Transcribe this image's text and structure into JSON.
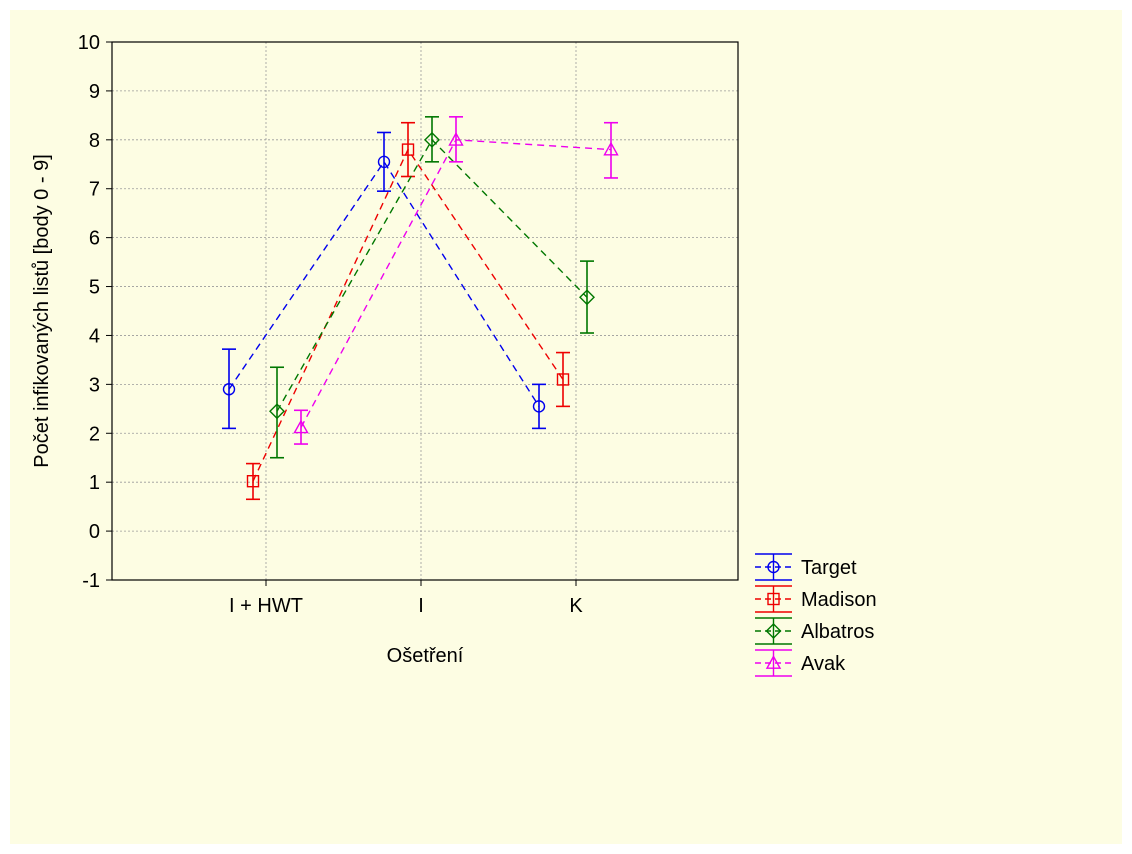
{
  "chart_data": {
    "type": "line",
    "title": "",
    "xlabel": "Ošetření",
    "ylabel": "Počet infikovaných listů [body 0 - 9]",
    "categories": [
      "I + HWT",
      "I",
      "K"
    ],
    "ylim": [
      -1,
      10
    ],
    "yticks": [
      "-1",
      "0",
      "1",
      "2",
      "3",
      "4",
      "5",
      "6",
      "7",
      "8",
      "9",
      "10"
    ],
    "grid": true,
    "legend_position": "bottom-right",
    "error_bars": true,
    "line_style": "dashed",
    "series": [
      {
        "name": "Target",
        "color": "#0000ee",
        "marker": "circle",
        "values": [
          2.9,
          7.55,
          2.55
        ],
        "lower": [
          2.1,
          6.95,
          2.1
        ],
        "upper": [
          3.72,
          8.15,
          3.0
        ],
        "plotted": [
          true,
          true,
          true
        ]
      },
      {
        "name": "Madison",
        "color": "#ee0000",
        "marker": "square",
        "values": [
          1.02,
          7.8,
          3.1
        ],
        "lower": [
          0.65,
          7.25,
          2.55
        ],
        "upper": [
          1.38,
          8.35,
          3.65
        ],
        "plotted": [
          true,
          true,
          true
        ]
      },
      {
        "name": "Albatros",
        "color": "#007700",
        "marker": "diamond",
        "values": [
          2.45,
          8.0,
          4.78
        ],
        "lower": [
          1.5,
          7.55,
          4.05
        ],
        "upper": [
          3.35,
          8.47,
          5.52
        ],
        "plotted": [
          true,
          true,
          true
        ]
      },
      {
        "name": "Avak",
        "color": "#ee00ee",
        "marker": "triangle",
        "values": [
          2.12,
          8.0,
          7.8
        ],
        "lower": [
          1.78,
          7.55,
          7.22
        ],
        "upper": [
          2.47,
          8.47,
          8.35
        ],
        "plotted": [
          true,
          true,
          true
        ]
      }
    ]
  }
}
